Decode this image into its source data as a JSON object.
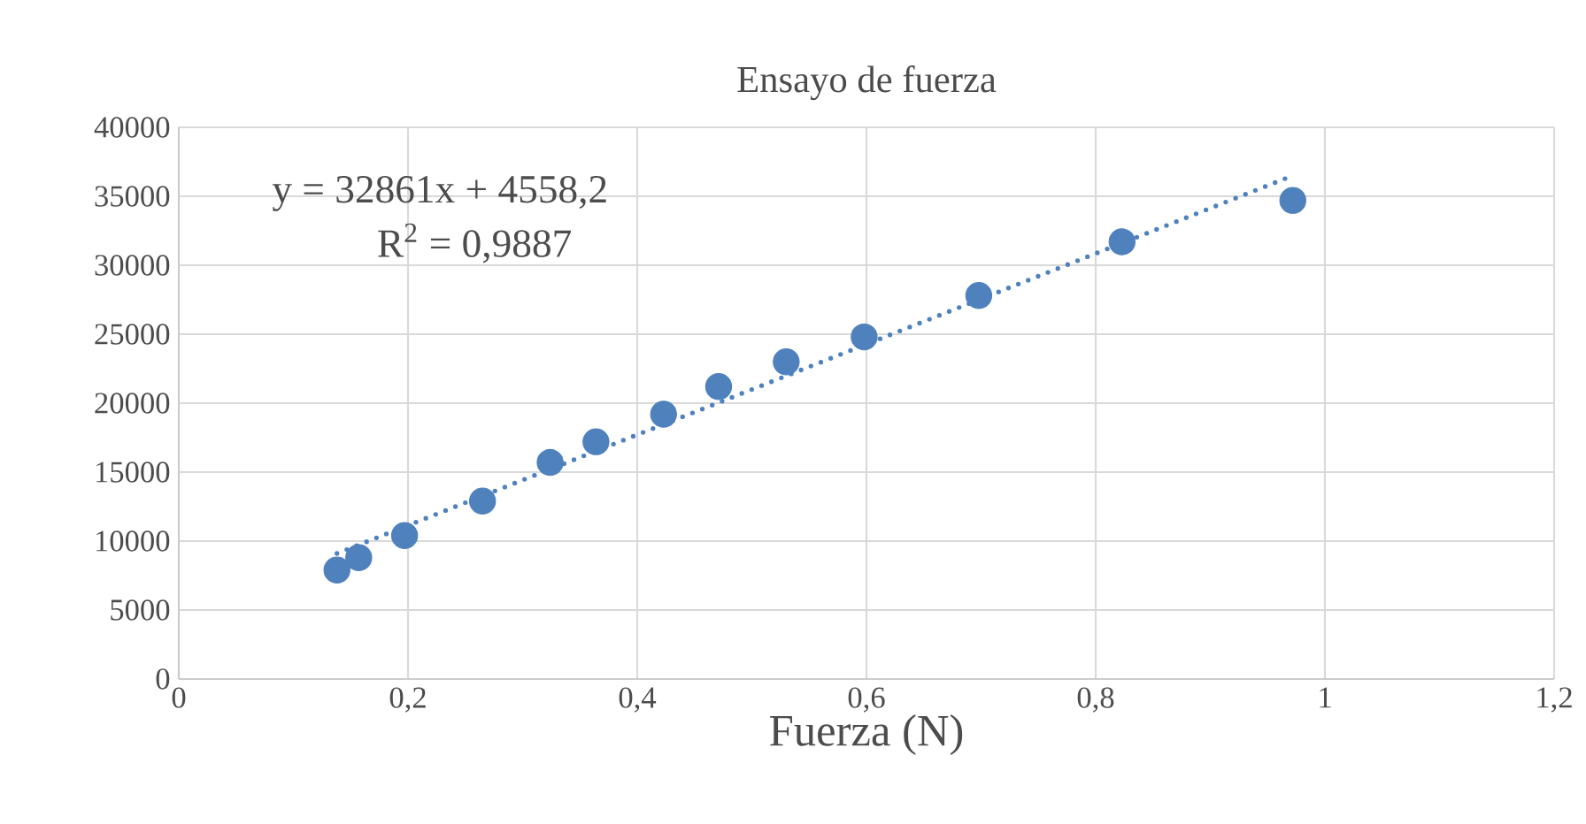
{
  "chart_data": {
    "type": "scatter",
    "title": "Ensayo de fuerza",
    "xlabel": "Fuerza (N)",
    "annotations": [
      "y = 32861x + 4558,2",
      "R$^{2}$ = 0,9887"
    ],
    "series": [
      {
        "color": "#4f81bd",
        "marker": "circle",
        "x": [
          0.138,
          0.157,
          0.197,
          0.265,
          0.324,
          0.364,
          0.423,
          0.471,
          0.53,
          0.598,
          0.698,
          0.823,
          0.972
        ],
        "values": [
          7900,
          8800,
          10400,
          12900,
          15700,
          17200,
          19200,
          21200,
          23000,
          24800,
          27800,
          31700,
          34700
        ]
      },
      {
        "type": "line",
        "color": "#4f81bd",
        "marker": "none",
        "line_style": "dotted",
        "x": [
          0.138,
          0.972
        ],
        "values": [
          9100,
          36500
        ]
      }
    ],
    "xlim": [
      0,
      1.2
    ],
    "ylim": [
      0,
      40000
    ],
    "xticks": [
      0,
      {
        "value": 0.2,
        "label": "0,2"
      },
      {
        "value": 0.4,
        "label": "0,4"
      },
      {
        "value": 0.6,
        "label": "0,6"
      },
      {
        "value": 0.8,
        "label": "0,8"
      },
      1,
      {
        "value": 1.2,
        "label": "1,2"
      }
    ],
    "yticks": [
      0,
      5000,
      10000,
      15000,
      20000,
      25000,
      30000,
      35000,
      40000
    ],
    "grid": true
  }
}
